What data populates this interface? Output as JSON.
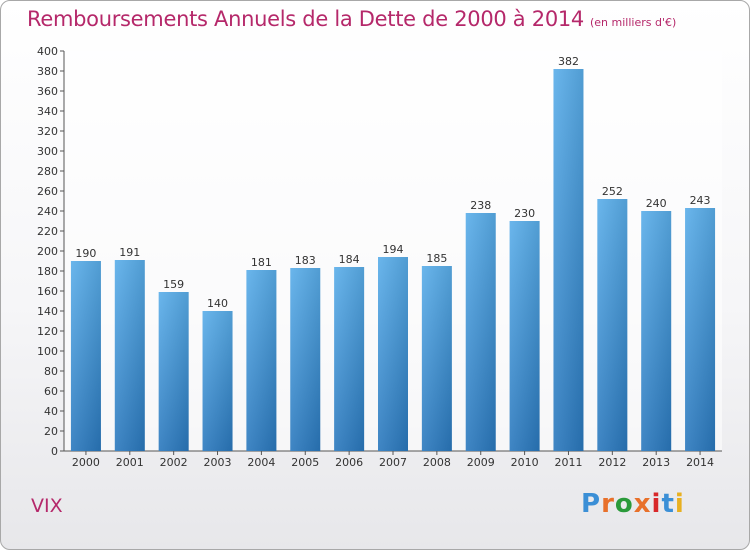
{
  "chart_data": {
    "type": "bar",
    "title": "Remboursements Annuels de la Dette de 2000 à 2014",
    "subtitle": "(en milliers d'€)",
    "xlabel": "",
    "ylabel": "",
    "categories": [
      "2000",
      "2001",
      "2002",
      "2003",
      "2004",
      "2005",
      "2006",
      "2007",
      "2008",
      "2009",
      "2010",
      "2011",
      "2012",
      "2013",
      "2014"
    ],
    "values": [
      190,
      191,
      159,
      140,
      181,
      183,
      184,
      194,
      185,
      238,
      230,
      382,
      252,
      240,
      243
    ],
    "ylim": [
      0,
      400
    ],
    "ytick_step": 20,
    "grid": false,
    "bar_color": "#4a9ee0",
    "title_color": "#b5286a"
  },
  "footer": {
    "commune": "VIX",
    "logo": "Proxiti",
    "logo_colors": [
      "#3b8fd6",
      "#e8702a",
      "#2a9a3a",
      "#e8702a",
      "#d8282a",
      "#3b8fd6",
      "#e8b020"
    ]
  }
}
